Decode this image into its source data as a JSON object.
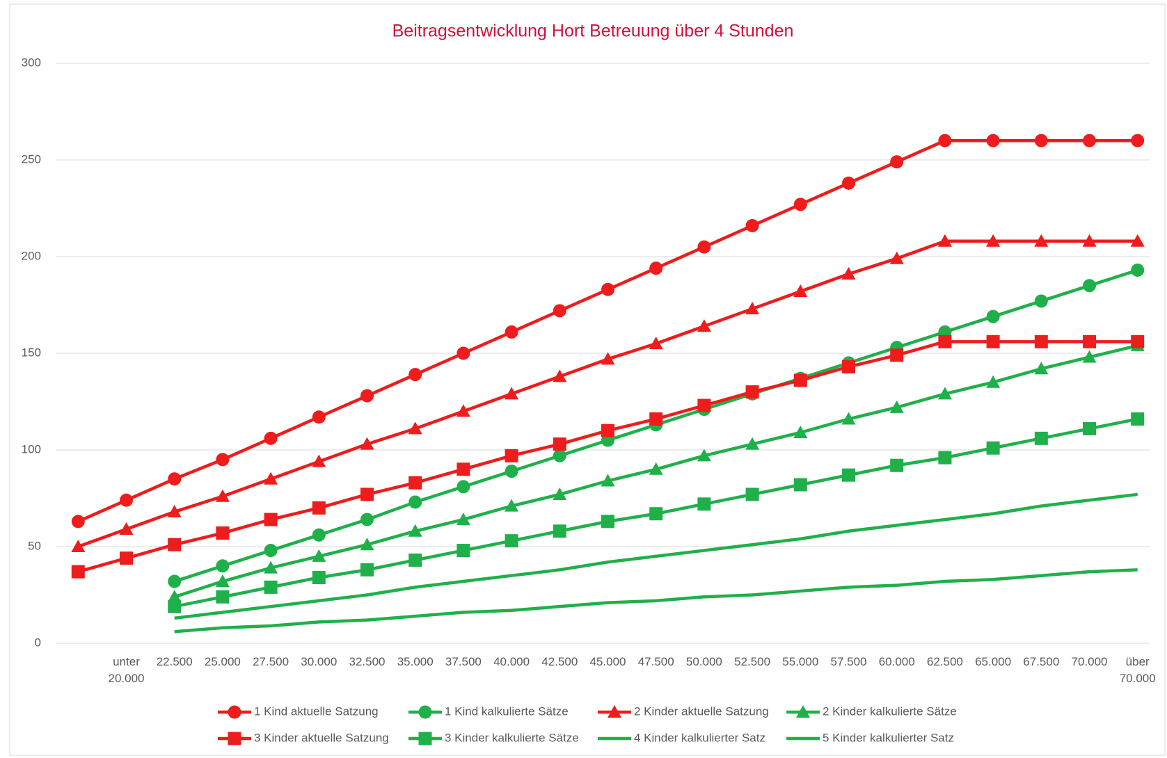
{
  "chart_data": {
    "type": "line",
    "title": "Beitragsentwicklung Hort Betreuung über 4 Stunden",
    "categories": [
      null,
      "unter 20.000",
      "22.500",
      "25.000",
      "27.500",
      "30.000",
      "32.500",
      "35.000",
      "37.500",
      "40.000",
      "42.500",
      "45.000",
      "47.500",
      "50.000",
      "52.500",
      "55.000",
      "57.500",
      "60.000",
      "62.500",
      "65.000",
      "67.500",
      "70.000",
      "über 70.000"
    ],
    "ylim": [
      0,
      300
    ],
    "yticks": [
      0,
      50,
      100,
      150,
      200,
      250,
      300
    ],
    "grid": true,
    "legend": "bottom",
    "series": [
      {
        "name": "1 Kind aktuelle Satzung",
        "color": "#ee1c1c",
        "marker": "circle",
        "values": [
          63,
          74,
          85,
          95,
          106,
          117,
          128,
          139,
          150,
          161,
          172,
          183,
          194,
          205,
          216,
          227,
          238,
          249,
          260,
          260,
          260,
          260,
          260
        ]
      },
      {
        "name": "1 Kind kalkulierte Sätze",
        "color": "#1fb04a",
        "marker": "circle",
        "values": [
          null,
          null,
          32,
          40,
          48,
          56,
          64,
          73,
          81,
          89,
          97,
          105,
          113,
          121,
          129,
          137,
          145,
          153,
          161,
          169,
          177,
          185,
          193
        ]
      },
      {
        "name": "2 Kinder aktuelle Satzung",
        "color": "#ee1c1c",
        "marker": "triangle",
        "values": [
          50,
          59,
          68,
          76,
          85,
          94,
          103,
          111,
          120,
          129,
          138,
          147,
          155,
          164,
          173,
          182,
          191,
          199,
          208,
          208,
          208,
          208,
          208
        ]
      },
      {
        "name": "2 Kinder kalkulierte Sätze",
        "color": "#1fb04a",
        "marker": "triangle",
        "values": [
          null,
          null,
          24,
          32,
          39,
          45,
          51,
          58,
          64,
          71,
          77,
          84,
          90,
          97,
          103,
          109,
          116,
          122,
          129,
          135,
          142,
          148,
          154
        ]
      },
      {
        "name": "3 Kinder aktuelle Satzung",
        "color": "#ee1c1c",
        "marker": "square",
        "values": [
          37,
          44,
          51,
          57,
          64,
          70,
          77,
          83,
          90,
          97,
          103,
          110,
          116,
          123,
          130,
          136,
          143,
          149,
          156,
          156,
          156,
          156,
          156
        ]
      },
      {
        "name": "3 Kinder kalkulierte Sätze",
        "color": "#1fb04a",
        "marker": "square",
        "values": [
          null,
          null,
          19,
          24,
          29,
          34,
          38,
          43,
          48,
          53,
          58,
          63,
          67,
          72,
          77,
          82,
          87,
          92,
          96,
          101,
          106,
          111,
          116
        ]
      },
      {
        "name": "4 Kinder kalkulierter Satz",
        "color": "#1fb04a",
        "marker": "none",
        "values": [
          null,
          null,
          13,
          16,
          19,
          22,
          25,
          29,
          32,
          35,
          38,
          42,
          45,
          48,
          51,
          54,
          58,
          61,
          64,
          67,
          71,
          74,
          77
        ]
      },
      {
        "name": "5 Kinder kalkulierter Satz",
        "color": "#1fb04a",
        "marker": "none",
        "values": [
          null,
          null,
          6,
          8,
          9,
          11,
          12,
          14,
          16,
          17,
          19,
          21,
          22,
          24,
          25,
          27,
          29,
          30,
          32,
          33,
          35,
          37,
          38
        ]
      }
    ]
  }
}
